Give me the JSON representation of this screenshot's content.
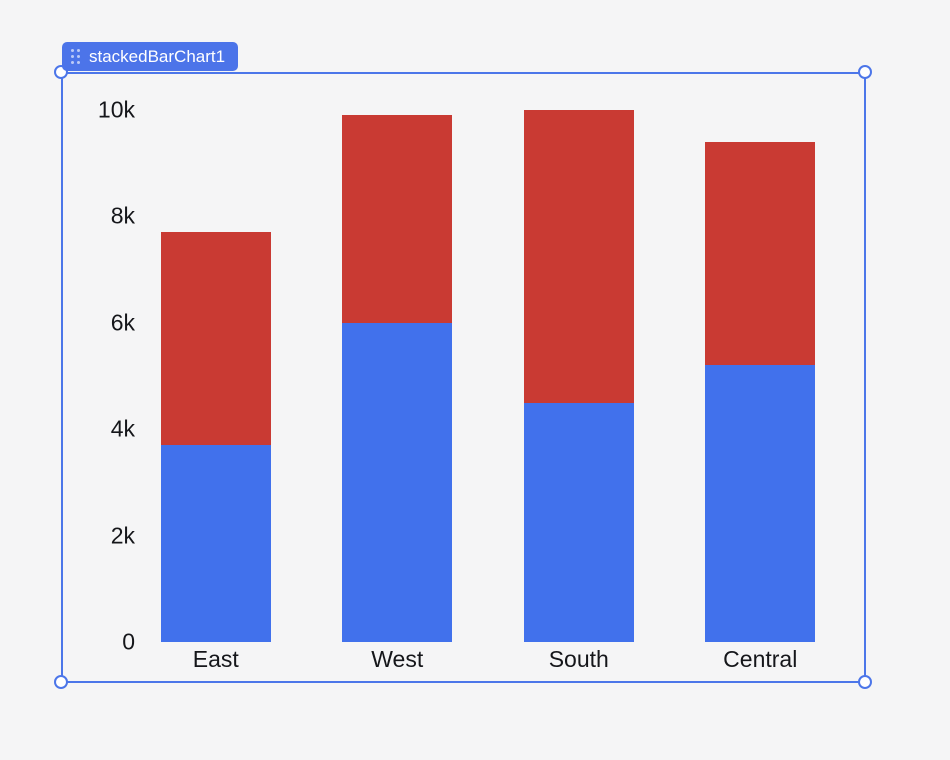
{
  "app": {
    "background_color": "#f5f5f6",
    "accent_color": "#4c74e9"
  },
  "widget": {
    "name_label": "stackedBarChart1",
    "badge_color": "#4c74e9",
    "selection_border_color": "#4c76e9",
    "handle_fill": "#ffffff",
    "drag_handle_icon": "six-dots-grip"
  },
  "chart_data": {
    "type": "bar",
    "stacked": true,
    "title": "",
    "xlabel": "",
    "ylabel": "",
    "grid": false,
    "legend": "none",
    "categories": [
      "East",
      "West",
      "South",
      "Central"
    ],
    "series": [
      {
        "color": "#4171ec",
        "values": [
          3700,
          6000,
          4500,
          5200
        ]
      },
      {
        "color": "#c93a33",
        "values": [
          4000,
          3900,
          5500,
          4200
        ]
      }
    ],
    "totals": [
      7700,
      9900,
      10000,
      9400
    ],
    "ylim": [
      0,
      10000
    ],
    "yticks": [
      {
        "value": 0,
        "label": "0"
      },
      {
        "value": 2000,
        "label": "2k"
      },
      {
        "value": 4000,
        "label": "4k"
      },
      {
        "value": 6000,
        "label": "6k"
      },
      {
        "value": 8000,
        "label": "8k"
      },
      {
        "value": 10000,
        "label": "10k"
      }
    ]
  }
}
